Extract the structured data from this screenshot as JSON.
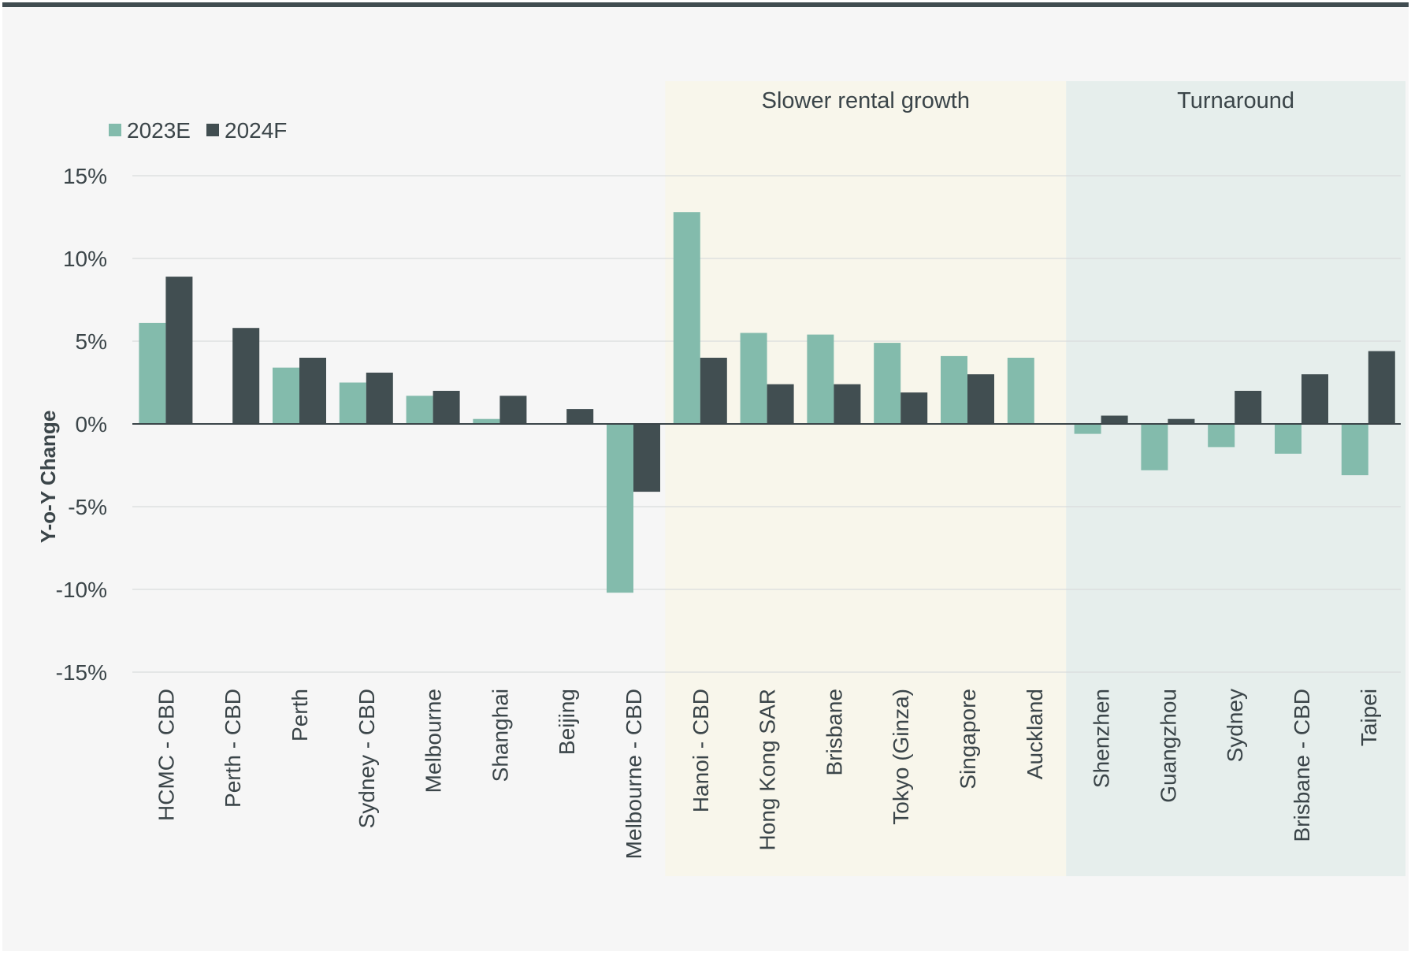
{
  "chart_data": {
    "type": "bar",
    "title": "",
    "xlabel": "",
    "ylabel": "Y-o-Y Change",
    "ylim": [
      -15,
      15
    ],
    "yticks": [
      15,
      10,
      5,
      0,
      -5,
      -10,
      -15
    ],
    "ytick_labels": [
      "15%",
      "10%",
      "5%",
      "0%",
      "-5%",
      "-10%",
      "-15%"
    ],
    "grid": true,
    "legend_position": "top-left",
    "categories": [
      "HCMC - CBD",
      "Perth - CBD",
      "Perth",
      "Sydney - CBD",
      "Melbourne",
      "Shanghai",
      "Beijing",
      "Melbourne - CBD",
      "Hanoi - CBD",
      "Hong Kong SAR",
      "Brisbane",
      "Tokyo (Ginza)",
      "Singapore",
      "Auckland",
      "Shenzhen",
      "Guangzhou",
      "Sydney",
      "Brisbane - CBD",
      "Taipei"
    ],
    "series": [
      {
        "name": "2023E",
        "color": "#83bbac",
        "values": [
          6.1,
          0.0,
          3.4,
          2.5,
          1.7,
          0.3,
          0.0,
          -10.2,
          12.8,
          5.5,
          5.4,
          4.9,
          4.1,
          4.0,
          -0.6,
          -2.8,
          -1.4,
          -1.8,
          -3.1
        ]
      },
      {
        "name": "2024F",
        "color": "#414e51",
        "values": [
          8.9,
          5.8,
          4.0,
          3.1,
          2.0,
          1.7,
          0.9,
          -4.1,
          4.0,
          2.4,
          2.4,
          1.9,
          3.0,
          0.0,
          0.5,
          0.3,
          2.0,
          3.0,
          4.4
        ]
      }
    ],
    "annotations": [
      {
        "label": "Slower rental growth",
        "start_category": "Hanoi - CBD",
        "end_category": "Auckland",
        "color": "#f8f6eb"
      },
      {
        "label": "Turnaround",
        "start_category": "Shenzhen",
        "end_category": "Taipei",
        "color": "#e6eeec"
      }
    ]
  }
}
